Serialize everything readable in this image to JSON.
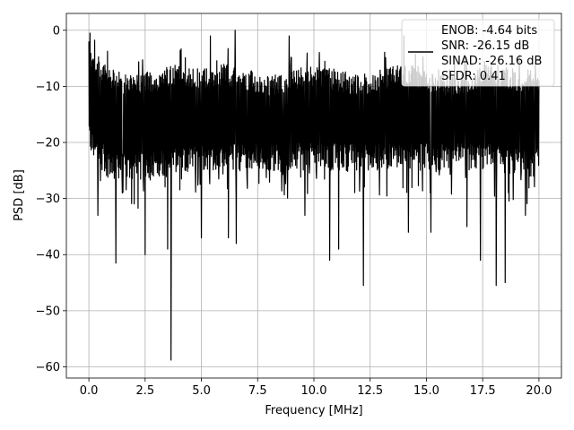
{
  "chart_data": {
    "type": "line",
    "title": "",
    "xlabel": "Frequency [MHz]",
    "ylabel": "PSD [dB]",
    "xlim": [
      -1,
      21
    ],
    "ylim": [
      -62,
      3
    ],
    "xticks": [
      0.0,
      2.5,
      5.0,
      7.5,
      10.0,
      12.5,
      15.0,
      17.5,
      20.0
    ],
    "xtick_labels": [
      "0.0",
      "2.5",
      "5.0",
      "7.5",
      "10.0",
      "12.5",
      "15.0",
      "17.5",
      "20.0"
    ],
    "yticks": [
      0,
      -10,
      -20,
      -30,
      -40,
      -50,
      -60
    ],
    "ytick_labels": [
      "0",
      "−10",
      "−20",
      "−30",
      "−40",
      "−50",
      "−60"
    ],
    "grid": true,
    "legend": {
      "position": "top-right",
      "entries": [
        "ENOB: -4.64 bits",
        "SNR: -26.15 dB",
        "SINAD: -26.16 dB",
        "SFDR: 0.41"
      ]
    },
    "series": [
      {
        "color": "#000000",
        "band": {
          "x_range": [
            0.0,
            20.0
          ],
          "upper": [
            -3,
            -7,
            -8,
            -7,
            -6,
            -7,
            -6,
            -7,
            -8,
            -7,
            -6,
            -7,
            -8,
            -7,
            -6,
            -7,
            -8,
            -7,
            -6,
            -7,
            -7
          ],
          "lower": [
            -22,
            -27,
            -27,
            -26,
            -26,
            -25,
            -25,
            -25,
            -25,
            -25,
            -25,
            -25,
            -25,
            -25,
            -25,
            -25,
            -25,
            -25,
            -25,
            -26,
            -26
          ],
          "center": -16
        },
        "peaks": [
          {
            "x": 0.0,
            "y": -2
          },
          {
            "x": 0.05,
            "y": -0.5
          },
          {
            "x": 5.4,
            "y": -1
          },
          {
            "x": 6.5,
            "y": 0
          },
          {
            "x": 8.9,
            "y": -1
          },
          {
            "x": 14.0,
            "y": -1
          },
          {
            "x": 17.4,
            "y": -2
          },
          {
            "x": 19.4,
            "y": -1
          }
        ],
        "dips": [
          {
            "x": 0.4,
            "y": -33
          },
          {
            "x": 1.2,
            "y": -41.5
          },
          {
            "x": 2.5,
            "y": -40
          },
          {
            "x": 3.5,
            "y": -39
          },
          {
            "x": 3.65,
            "y": -58.8
          },
          {
            "x": 5.0,
            "y": -37
          },
          {
            "x": 6.2,
            "y": -37
          },
          {
            "x": 6.55,
            "y": -38
          },
          {
            "x": 9.6,
            "y": -33
          },
          {
            "x": 10.7,
            "y": -41
          },
          {
            "x": 11.1,
            "y": -39
          },
          {
            "x": 12.2,
            "y": -45.5
          },
          {
            "x": 14.2,
            "y": -36
          },
          {
            "x": 15.2,
            "y": -36
          },
          {
            "x": 16.8,
            "y": -35
          },
          {
            "x": 17.4,
            "y": -41
          },
          {
            "x": 18.1,
            "y": -45.5
          },
          {
            "x": 18.5,
            "y": -45
          },
          {
            "x": 19.4,
            "y": -33
          }
        ]
      }
    ]
  }
}
